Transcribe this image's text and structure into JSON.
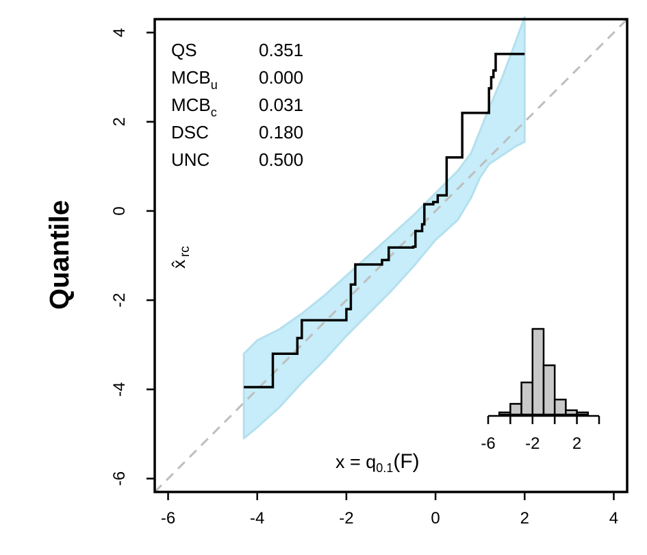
{
  "chart_data": {
    "type": "line",
    "ylabel": "Quantile",
    "plot_label": "x̂",
    "plot_label_sub": "rc",
    "x_label_main": "x = q",
    "x_label_sub": "0.1",
    "x_label_tail": "(F)",
    "xlim": [
      -6.3,
      4.3
    ],
    "ylim": [
      -6.3,
      4.3
    ],
    "x_ticks": [
      -6,
      -4,
      -2,
      0,
      2,
      4
    ],
    "y_ticks": [
      -6,
      -4,
      -2,
      0,
      2,
      4
    ],
    "x_tick_labels": [
      "-6",
      "-4",
      "-2",
      "0",
      "2",
      "4"
    ],
    "y_tick_labels": [
      "-6",
      "-4",
      "-2",
      "0",
      "2",
      "4"
    ],
    "grid": false,
    "stats": [
      {
        "label": "QS",
        "sub": "",
        "value": "0.351"
      },
      {
        "label": "MCB",
        "sub": "u",
        "value": "0.000"
      },
      {
        "label": "MCB",
        "sub": "c",
        "value": "0.031"
      },
      {
        "label": "DSC",
        "sub": "",
        "value": "0.180"
      },
      {
        "label": "UNC",
        "sub": "",
        "value": "0.500"
      }
    ],
    "diagonal": {
      "color": "#bebebe",
      "from": [
        -6.3,
        -6.3
      ],
      "to": [
        4.3,
        4.3
      ]
    },
    "band": {
      "color": "#c6edf9",
      "x": [
        -4.3,
        -4.0,
        -3.5,
        -3.0,
        -2.5,
        -2.0,
        -1.5,
        -1.0,
        -0.5,
        0.0,
        0.5,
        0.8,
        1.0,
        1.2,
        1.5,
        1.8,
        2.0
      ],
      "upper": [
        -3.2,
        -2.9,
        -2.65,
        -2.3,
        -1.9,
        -1.45,
        -1.0,
        -0.55,
        -0.1,
        0.4,
        0.9,
        1.3,
        1.8,
        2.3,
        3.0,
        3.8,
        4.35
      ],
      "lower": [
        -5.1,
        -4.85,
        -4.4,
        -3.85,
        -3.35,
        -2.8,
        -2.3,
        -1.8,
        -1.25,
        -0.65,
        -0.2,
        0.3,
        0.75,
        1.05,
        1.25,
        1.45,
        1.55
      ]
    },
    "series": [
      {
        "color": "#000000",
        "x": [
          -4.3,
          -3.65,
          -3.65,
          -3.1,
          -3.1,
          -3.0,
          -3.0,
          -2.0,
          -2.0,
          -1.9,
          -1.9,
          -1.8,
          -1.8,
          -1.2,
          -1.2,
          -1.05,
          -1.05,
          -0.5,
          -0.5,
          -0.45,
          -0.45,
          -0.3,
          -0.3,
          -0.25,
          -0.25,
          -0.05,
          -0.05,
          0.05,
          0.05,
          0.25,
          0.25,
          0.6,
          0.6,
          1.2,
          1.2,
          1.25,
          1.25,
          1.3,
          1.3,
          1.35,
          1.35,
          2.0
        ],
        "y": [
          -3.95,
          -3.95,
          -3.2,
          -3.2,
          -2.85,
          -2.85,
          -2.45,
          -2.45,
          -2.2,
          -2.2,
          -1.65,
          -1.65,
          -1.2,
          -1.2,
          -1.1,
          -1.1,
          -0.82,
          -0.82,
          -0.8,
          -0.8,
          -0.45,
          -0.45,
          -0.3,
          -0.3,
          0.15,
          0.15,
          0.2,
          0.2,
          0.35,
          0.35,
          1.2,
          1.2,
          2.2,
          2.2,
          2.75,
          2.75,
          3.0,
          3.0,
          3.15,
          3.15,
          3.52,
          3.52
        ]
      }
    ],
    "inset_histogram": {
      "x_ticks": [
        -6,
        -4,
        -2,
        0,
        2,
        4
      ],
      "x_tick_labels": [
        "-6",
        "",
        "-2",
        "",
        "2",
        ""
      ],
      "bins": [
        -5,
        -4,
        -3,
        -2,
        -1,
        0,
        1,
        2,
        3
      ],
      "counts": [
        1,
        5,
        15,
        40,
        23,
        7,
        2,
        1
      ],
      "fill": "#c8c8c8"
    }
  }
}
